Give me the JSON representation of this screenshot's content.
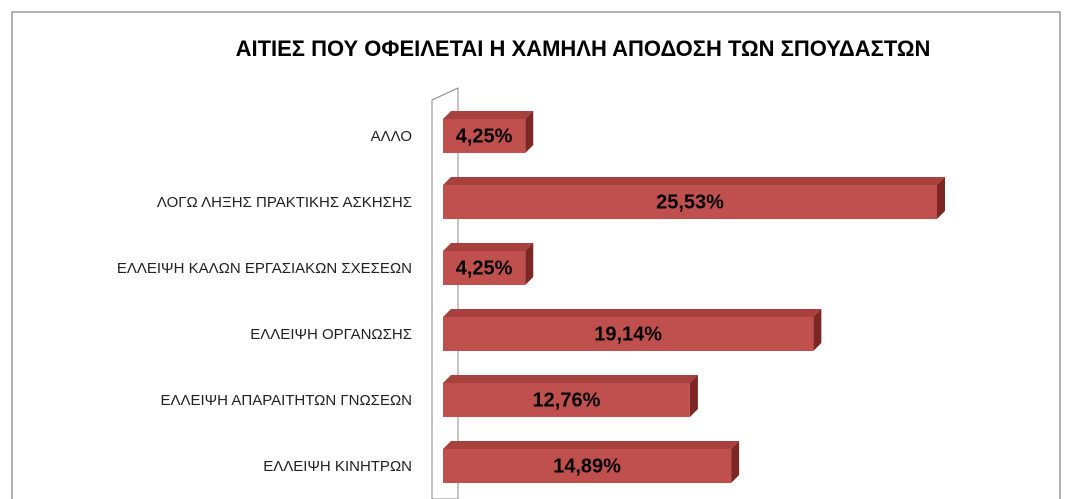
{
  "chart_data": {
    "type": "bar",
    "orientation": "horizontal",
    "title": "ΑΙΤΙΕΣ ΠΟΥ ΟΦΕΙΛΕΤΑΙ Η ΧΑΜΗΛΗ ΑΠΟΔΟΣΗ ΤΩΝ ΣΠΟΥΔΑΣΤΩΝ",
    "categories": [
      "ΑΛΛΟ",
      "ΛΟΓΩ ΛΗΞΗΣ ΠΡΑΚΤΙΚΗΣ ΑΣΚΗΣΗΣ",
      "ΕΛΛΕΙΨΗ ΚΑΛΩΝ ΕΡΓΑΣΙΑΚΩΝ ΣΧΕΣΕΩΝ",
      "ΕΛΛΕΙΨΗ ΟΡΓΑΝΩΣΗΣ",
      "ΕΛΛΕΙΨΗ ΑΠΑΡΑΙΤΗΤΩΝ ΓΝΩΣΕΩΝ",
      "ΕΛΛΕΙΨΗ ΚΙΝΗΤΡΩΝ"
    ],
    "values": [
      4.25,
      25.53,
      4.25,
      19.14,
      12.76,
      14.89
    ],
    "value_labels": [
      "4,25%",
      "25,53%",
      "4,25%",
      "19,14%",
      "12,76%",
      "14,89%"
    ],
    "color": "#c0504d"
  }
}
